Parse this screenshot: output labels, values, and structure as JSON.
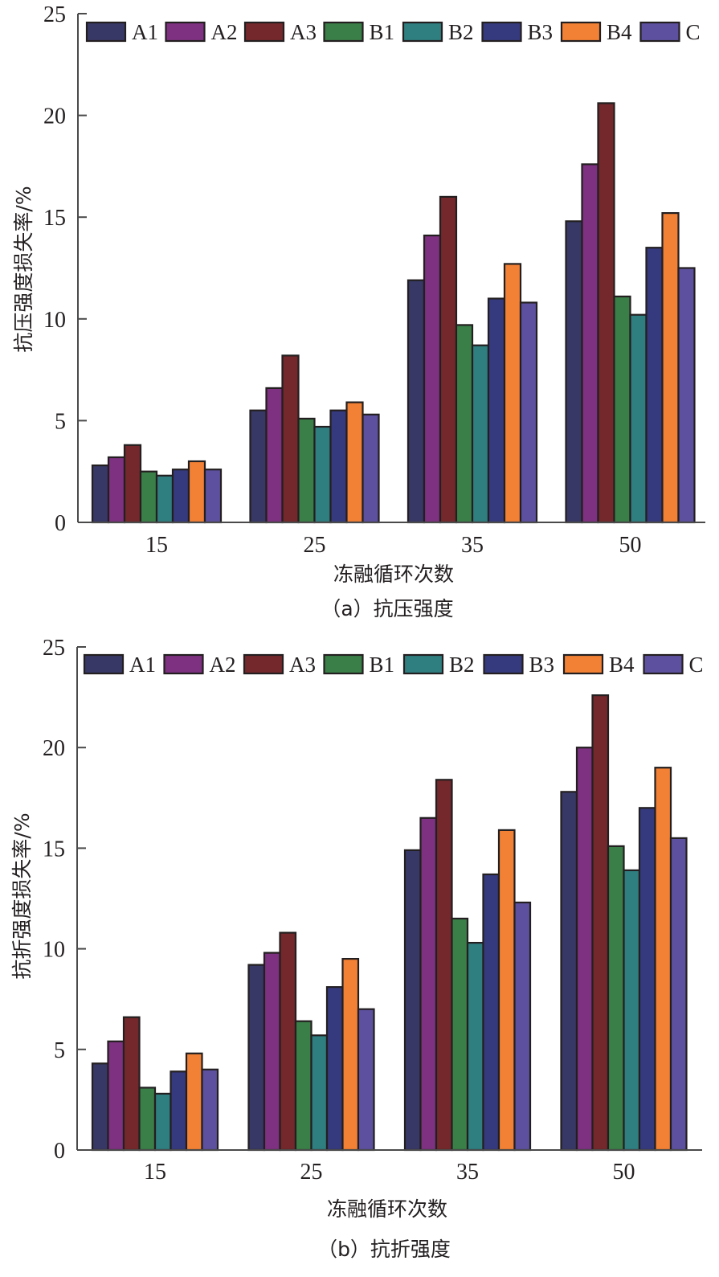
{
  "chart_data": [
    {
      "type": "bar",
      "title": "",
      "caption": "（a）抗压强度",
      "xlabel": "冻融循环次数",
      "ylabel": "抗压强度损失率/%",
      "categories": [
        "15",
        "25",
        "35",
        "50"
      ],
      "ylim": [
        0,
        25
      ],
      "yticks": [
        "0",
        "5",
        "10",
        "15",
        "20",
        "25"
      ],
      "legend_position": "top",
      "grid": false,
      "series": [
        {
          "name": "A1",
          "color": "#373866",
          "values": [
            2.8,
            5.5,
            11.9,
            14.8
          ]
        },
        {
          "name": "A2",
          "color": "#7d3180",
          "values": [
            3.2,
            6.6,
            14.1,
            17.6
          ]
        },
        {
          "name": "A3",
          "color": "#74282b",
          "values": [
            3.8,
            8.2,
            16.0,
            20.6
          ]
        },
        {
          "name": "B1",
          "color": "#3a7f48",
          "values": [
            2.5,
            5.1,
            9.7,
            11.1
          ]
        },
        {
          "name": "B2",
          "color": "#2f7e80",
          "values": [
            2.3,
            4.7,
            8.7,
            10.2
          ]
        },
        {
          "name": "B3",
          "color": "#353a7e",
          "values": [
            2.6,
            5.5,
            11.0,
            13.5
          ]
        },
        {
          "name": "B4",
          "color": "#f38135",
          "values": [
            3.0,
            5.9,
            12.7,
            15.2
          ]
        },
        {
          "name": "C",
          "color": "#5d519f",
          "values": [
            2.6,
            5.3,
            10.8,
            12.5
          ]
        }
      ]
    },
    {
      "type": "bar",
      "title": "",
      "caption": "（b）抗折强度",
      "xlabel": "冻融循环次数",
      "ylabel": "抗折强度损失率/%",
      "categories": [
        "15",
        "25",
        "35",
        "50"
      ],
      "ylim": [
        0,
        25
      ],
      "yticks": [
        "0",
        "5",
        "10",
        "15",
        "20",
        "25"
      ],
      "legend_position": "top",
      "grid": false,
      "series": [
        {
          "name": "A1",
          "color": "#373866",
          "values": [
            4.3,
            9.2,
            14.9,
            17.8
          ]
        },
        {
          "name": "A2",
          "color": "#7d3180",
          "values": [
            5.4,
            9.8,
            16.5,
            20.0
          ]
        },
        {
          "name": "A3",
          "color": "#74282b",
          "values": [
            6.6,
            10.8,
            18.4,
            22.6
          ]
        },
        {
          "name": "B1",
          "color": "#3a7f48",
          "values": [
            3.1,
            6.4,
            11.5,
            15.1
          ]
        },
        {
          "name": "B2",
          "color": "#2f7e80",
          "values": [
            2.8,
            5.7,
            10.3,
            13.9
          ]
        },
        {
          "name": "B3",
          "color": "#353a7e",
          "values": [
            3.9,
            8.1,
            13.7,
            17.0
          ]
        },
        {
          "name": "B4",
          "color": "#f38135",
          "values": [
            4.8,
            9.5,
            15.9,
            19.0
          ]
        },
        {
          "name": "C",
          "color": "#5d519f",
          "values": [
            4.0,
            7.0,
            12.3,
            15.5
          ]
        }
      ]
    }
  ]
}
